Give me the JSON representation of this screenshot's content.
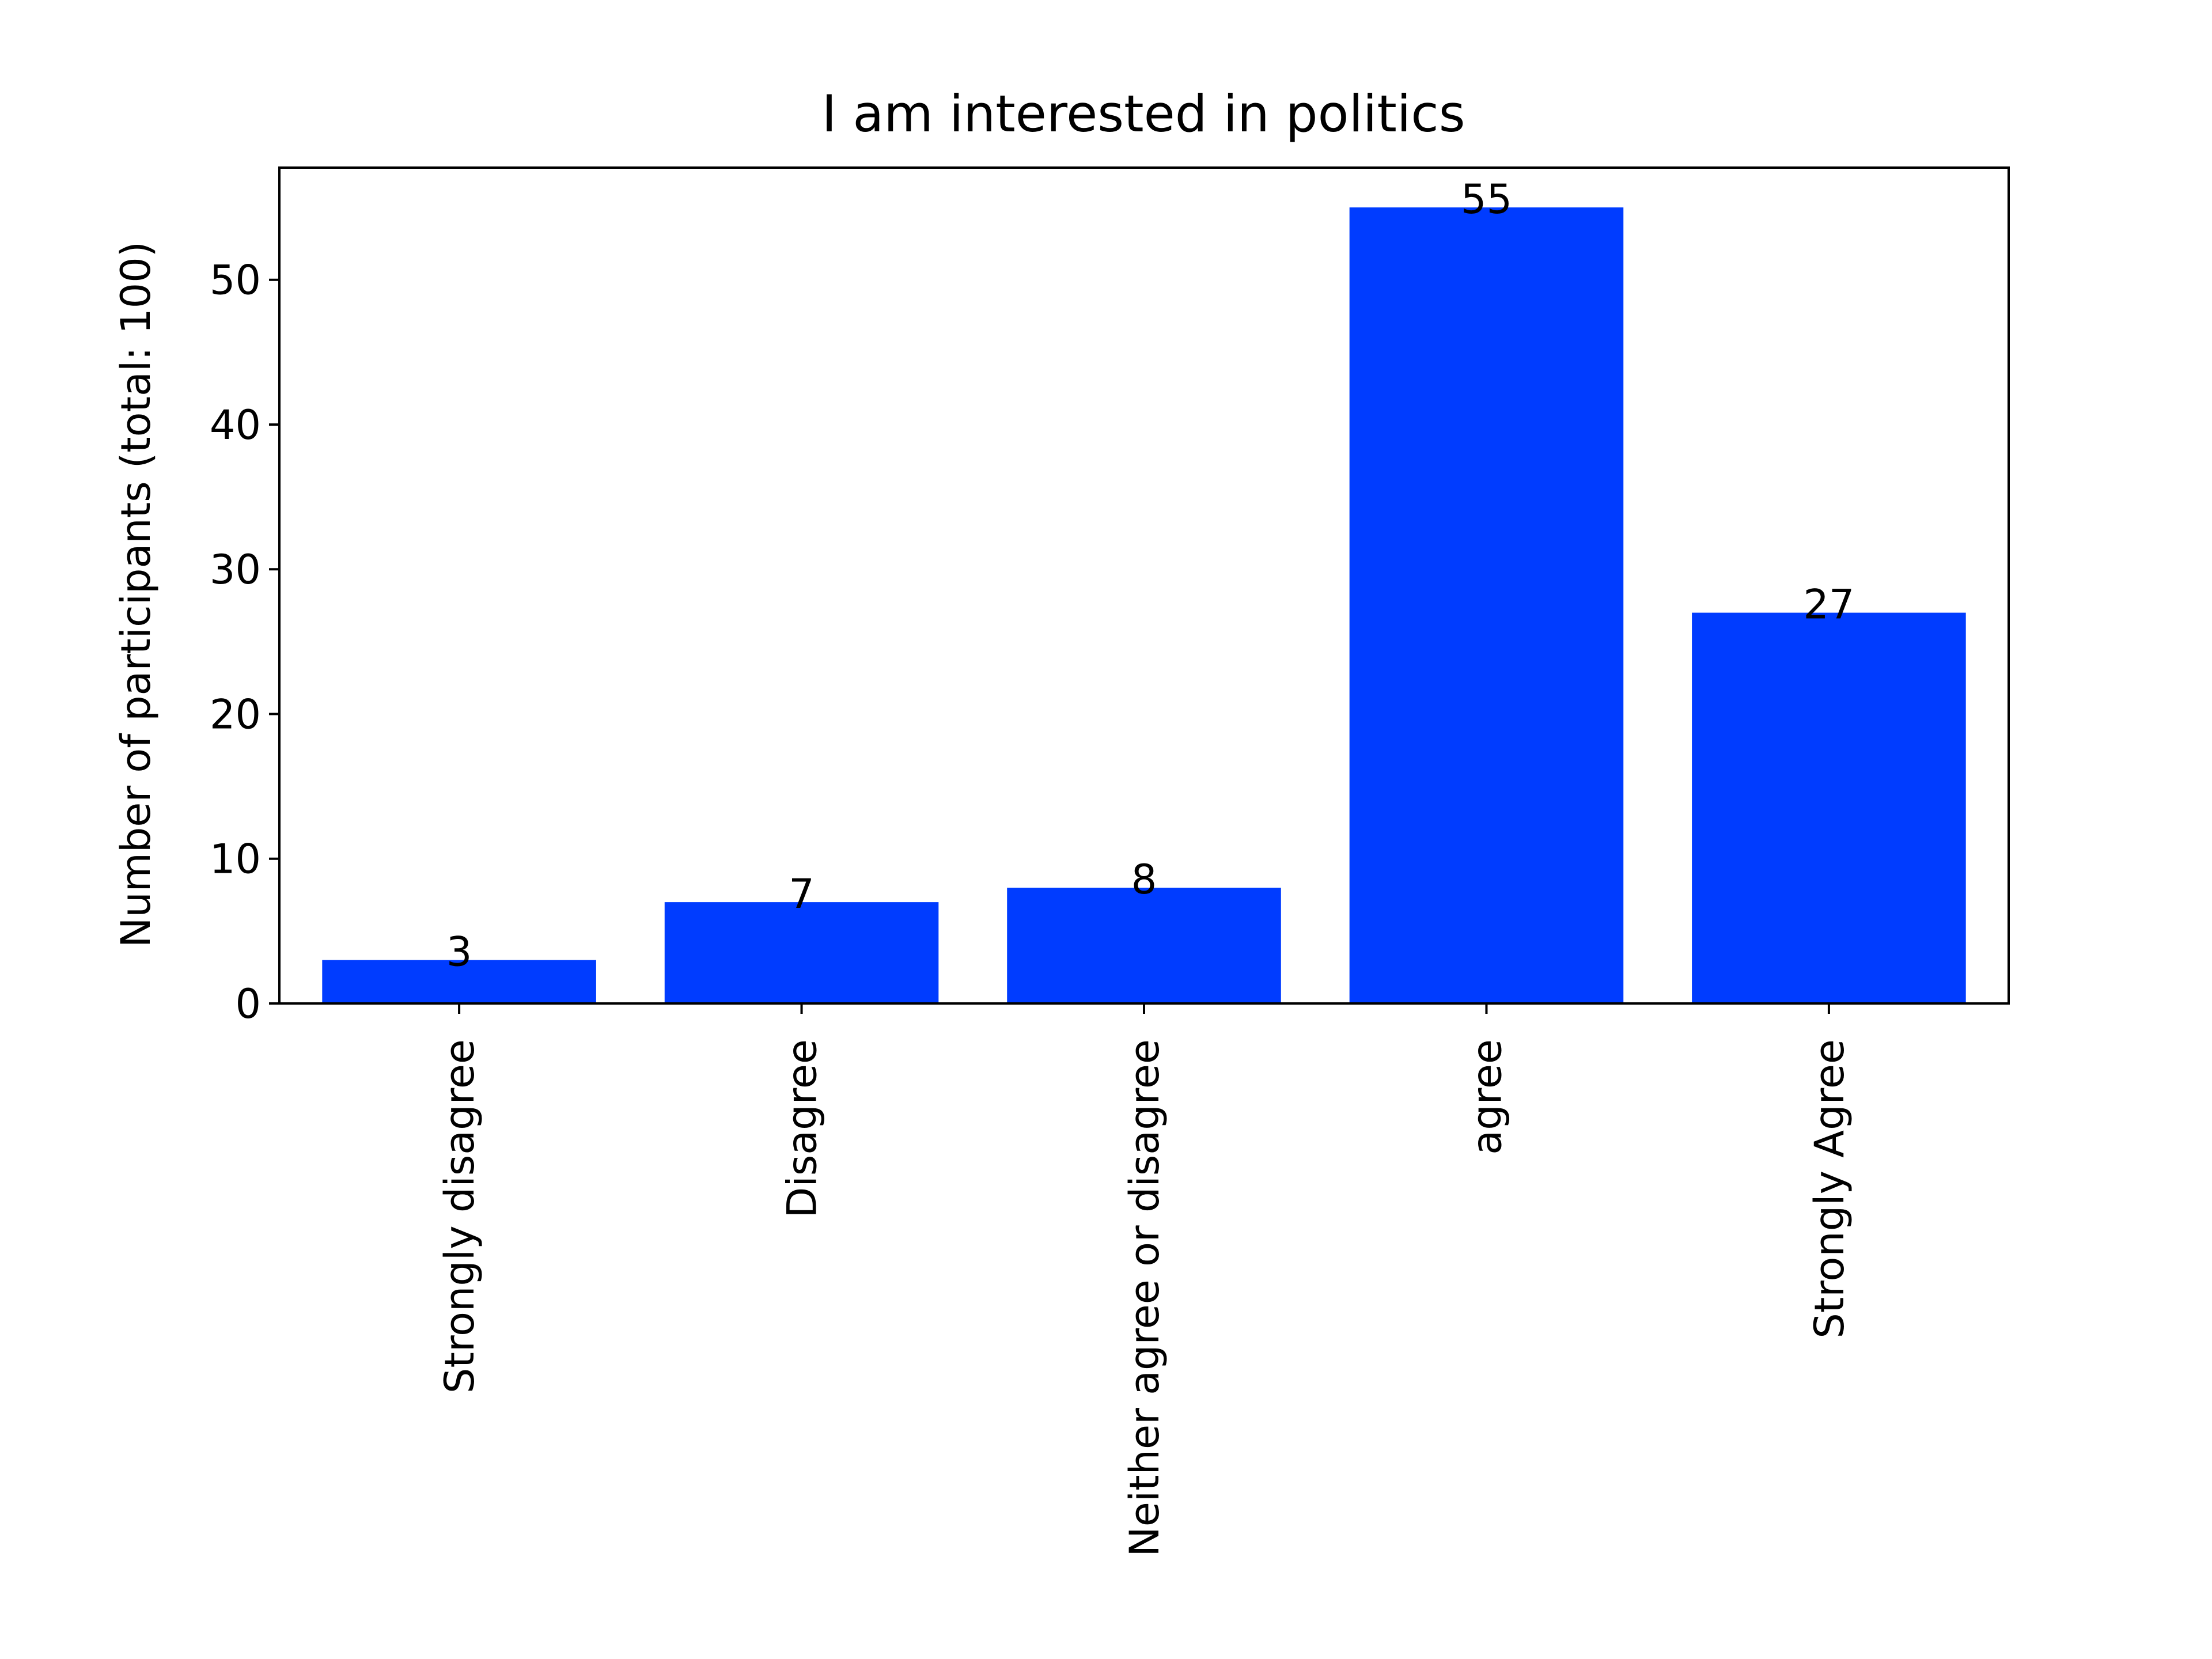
{
  "chart_data": {
    "type": "bar",
    "title": "I am interested in politics",
    "xlabel": "",
    "ylabel": "Number of participants (total: 100)",
    "categories": [
      "Strongly disagree",
      "Disagree",
      "Neither agree or disagree",
      "agree",
      "Strongly Agree"
    ],
    "values": [
      3,
      7,
      8,
      55,
      27
    ],
    "data_labels": [
      "3",
      "7",
      "8",
      "55",
      "27"
    ],
    "yticks": [
      0,
      10,
      20,
      30,
      40,
      50
    ],
    "ylim": [
      0,
      57.75
    ],
    "grid": false,
    "legend": "none",
    "bar_color": "#003cff"
  }
}
